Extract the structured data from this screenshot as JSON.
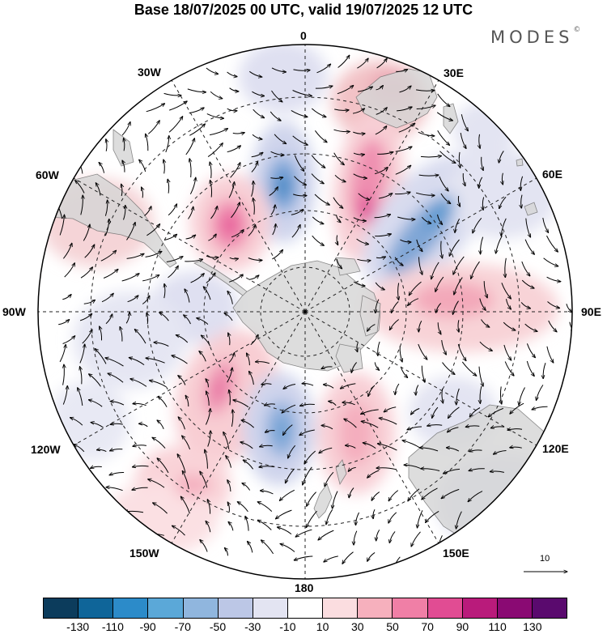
{
  "title": "Base 18/07/2025 00 UTC, valid 19/07/2025 12 UTC",
  "brand": "MODES",
  "brand_mark": "©",
  "longitude_labels": {
    "lon_0": "0",
    "lon_30e": "30E",
    "lon_60e": "60E",
    "lon_90e": "90E",
    "lon_120e": "120E",
    "lon_150e": "150E",
    "lon_180": "180",
    "lon_150w": "150W",
    "lon_120w": "120W",
    "lon_90w": "90W",
    "lon_60w": "60W",
    "lon_30w": "30W"
  },
  "reference_vector": {
    "value": "10"
  },
  "colorbar": {
    "colors": [
      "#0c3c5c",
      "#0f6599",
      "#2c8bc9",
      "#5ba8d8",
      "#90b6de",
      "#bcc7e6",
      "#e3e4f2",
      "#ffffff",
      "#fbdde0",
      "#f6b0bd",
      "#f07fa6",
      "#e14c93",
      "#b91b7b",
      "#8a0a73",
      "#5a0a6e"
    ],
    "tick_labels": [
      "-130",
      "-110",
      "-90",
      "-70",
      "-50",
      "-30",
      "-10",
      "10",
      "30",
      "50",
      "70",
      "90",
      "110",
      "130"
    ]
  }
}
